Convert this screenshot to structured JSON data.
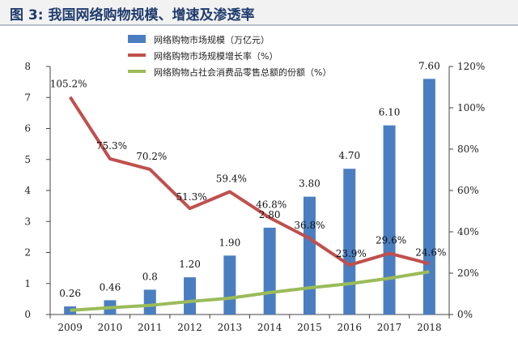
{
  "figure": {
    "label": "图 3:",
    "title": "我国网络购物规模、增速及渗透率"
  },
  "colors": {
    "bar": "#4a7ec0",
    "growth_line": "#c0504d",
    "share_line": "#9bbb59",
    "axis": "#444444"
  },
  "chart_data": {
    "type": "bar",
    "categories": [
      "2009",
      "2010",
      "2011",
      "2012",
      "2013",
      "2014",
      "2015",
      "2016",
      "2017",
      "2018"
    ],
    "series": [
      {
        "name": "网络购物市场规模（万亿元）",
        "type": "bar",
        "axis": "left",
        "values": [
          0.26,
          0.46,
          0.8,
          1.2,
          1.9,
          2.8,
          3.8,
          4.7,
          6.1,
          7.6
        ],
        "labels": [
          "0.26",
          "0.46",
          "0.8",
          "1.20",
          "1.90",
          "2.80",
          "3.80",
          "4.70",
          "6.10",
          "7.60"
        ]
      },
      {
        "name": "网络购物市场规模增长率（%）",
        "type": "line",
        "axis": "right",
        "values": [
          105.2,
          75.3,
          70.2,
          51.3,
          59.4,
          46.8,
          36.8,
          23.9,
          29.6,
          24.6
        ],
        "labels": [
          "105.2%",
          "75.3%",
          "70.2%",
          "51.3%",
          "59.4%",
          "46.8%",
          "36.8%",
          "23.9%",
          "29.6%",
          "24.6%"
        ]
      },
      {
        "name": "网络购物占社会消费品零售总额的份额（%）",
        "type": "line",
        "axis": "right",
        "values": [
          2.0,
          3.3,
          4.4,
          6.3,
          7.9,
          10.6,
          12.9,
          14.9,
          17.5,
          20.7
        ]
      }
    ],
    "y_left": {
      "min": 0,
      "max": 8,
      "ticks": [
        "0",
        "1",
        "2",
        "3",
        "4",
        "5",
        "6",
        "7",
        "8"
      ]
    },
    "y_right": {
      "min": 0,
      "max": 120,
      "ticks": [
        "0%",
        "20%",
        "40%",
        "60%",
        "80%",
        "100%",
        "120%"
      ]
    },
    "legend_position": "top-center"
  }
}
